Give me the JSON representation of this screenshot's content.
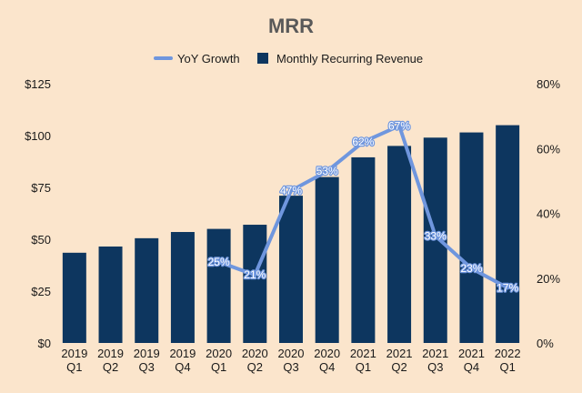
{
  "chart_data": {
    "type": "bar",
    "title": "MRR",
    "categories": [
      [
        "2019",
        "Q1"
      ],
      [
        "2019",
        "Q2"
      ],
      [
        "2019",
        "Q3"
      ],
      [
        "2019",
        "Q4"
      ],
      [
        "2020",
        "Q1"
      ],
      [
        "2020",
        "Q2"
      ],
      [
        "2020",
        "Q3"
      ],
      [
        "2020",
        "Q4"
      ],
      [
        "2021",
        "Q1"
      ],
      [
        "2021",
        "Q2"
      ],
      [
        "2021",
        "Q3"
      ],
      [
        "2021",
        "Q4"
      ],
      [
        "2022",
        "Q1"
      ]
    ],
    "series": [
      {
        "name": "Monthly Recurring Revenue",
        "type": "bar",
        "axis": "left",
        "color": "#0d365f",
        "values": [
          43.5,
          46.5,
          50.5,
          53.5,
          55,
          57,
          71,
          80,
          89.5,
          95,
          99,
          101.5,
          105
        ]
      },
      {
        "name": "YoY Growth",
        "type": "line",
        "axis": "right",
        "color": "#6f96de",
        "values": [
          null,
          null,
          null,
          null,
          25,
          21,
          47,
          53,
          62,
          67,
          33,
          23,
          17
        ],
        "labels": [
          null,
          null,
          null,
          null,
          "25%",
          "21%",
          "47%",
          "53%",
          "62%",
          "67%",
          "33%",
          "23%",
          "17%"
        ]
      }
    ],
    "y_left": {
      "min": 0,
      "max": 125,
      "ticks": [
        "$0",
        "$25",
        "$50",
        "$75",
        "$100",
        "$125"
      ]
    },
    "y_right": {
      "min": 0,
      "max": 80,
      "ticks": [
        "0%",
        "20%",
        "40%",
        "60%",
        "80%"
      ]
    },
    "legend": {
      "position": "top-center",
      "items": [
        {
          "label": "YoY Growth",
          "marker": "line",
          "color": "#6f96de"
        },
        {
          "label": "Monthly Recurring Revenue",
          "marker": "square",
          "color": "#0d365f"
        }
      ]
    },
    "grid": false,
    "background": "#fbe5cc"
  }
}
